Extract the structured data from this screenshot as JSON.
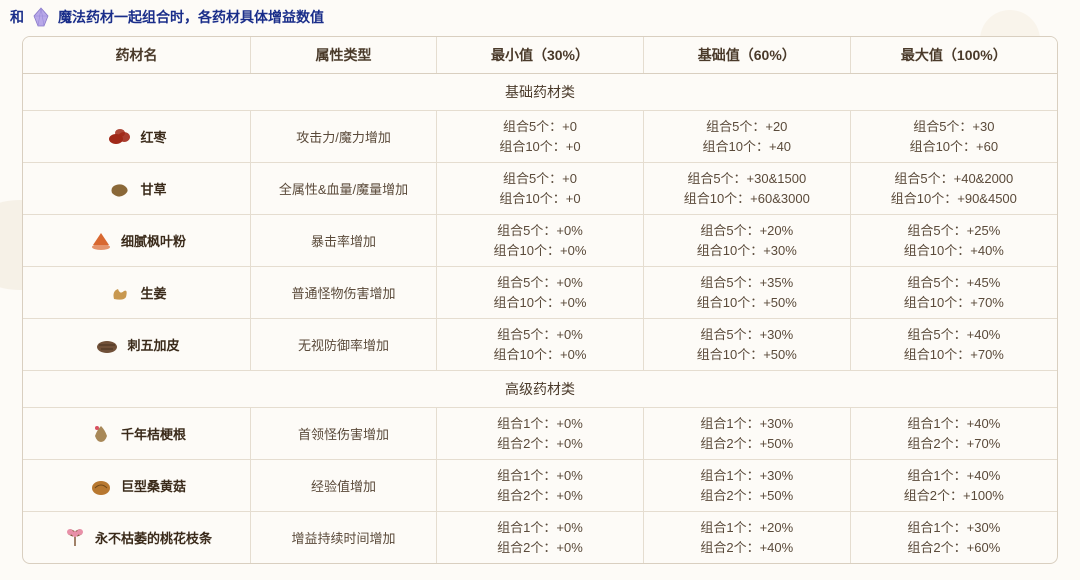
{
  "header": {
    "prefix": "和",
    "title": "魔法药材一起组合时，各药材具体增益数值"
  },
  "columns": [
    "药材名",
    "属性类型",
    "最小值（30%）",
    "基础值（60%）",
    "最大值（100%）"
  ],
  "section1": {
    "title": "基础药材类"
  },
  "section2": {
    "title": "高级药材类"
  },
  "rows1": [
    {
      "name": "红枣",
      "iconColor": "#a02818",
      "attr": "攻击力/魔力增加",
      "minA": "组合5个：+0",
      "minB": "组合10个：+0",
      "baseA": "组合5个：+20",
      "baseB": "组合10个：+40",
      "maxA": "组合5个：+30",
      "maxB": "组合10个：+60"
    },
    {
      "name": "甘草",
      "iconColor": "#8a6838",
      "attr": "全属性&血量/魔量增加",
      "minA": "组合5个：+0",
      "minB": "组合10个：+0",
      "baseA": "组合5个：+30&1500",
      "baseB": "组合10个：+60&3000",
      "maxA": "组合5个：+40&2000",
      "maxB": "组合10个：+90&4500"
    },
    {
      "name": "细腻枫叶粉",
      "iconColor": "#d86830",
      "attr": "暴击率增加",
      "minA": "组合5个：+0%",
      "minB": "组合10个：+0%",
      "baseA": "组合5个：+20%",
      "baseB": "组合10个：+30%",
      "maxA": "组合5个：+25%",
      "maxB": "组合10个：+40%"
    },
    {
      "name": "生姜",
      "iconColor": "#c89850",
      "attr": "普通怪物伤害增加",
      "minA": "组合5个：+0%",
      "minB": "组合10个：+0%",
      "baseA": "组合5个：+35%",
      "baseB": "组合10个：+50%",
      "maxA": "组合5个：+45%",
      "maxB": "组合10个：+70%"
    },
    {
      "name": "刺五加皮",
      "iconColor": "#705038",
      "attr": "无视防御率增加",
      "minA": "组合5个：+0%",
      "minB": "组合10个：+0%",
      "baseA": "组合5个：+30%",
      "baseB": "组合10个：+50%",
      "maxA": "组合5个：+40%",
      "maxB": "组合10个：+70%"
    }
  ],
  "rows2": [
    {
      "name": "千年桔梗根",
      "iconColor": "#a88858",
      "attr": "首领怪伤害增加",
      "minA": "组合1个：+0%",
      "minB": "组合2个：+0%",
      "baseA": "组合1个：+30%",
      "baseB": "组合2个：+50%",
      "maxA": "组合1个：+40%",
      "maxB": "组合2个：+70%"
    },
    {
      "name": "巨型桑黄菇",
      "iconColor": "#b87830",
      "attr": "经验值增加",
      "minA": "组合1个：+0%",
      "minB": "组合2个：+0%",
      "baseA": "组合1个：+30%",
      "baseB": "组合2个：+50%",
      "maxA": "组合1个：+40%",
      "maxB": "组合2个：+100%"
    },
    {
      "name": "永不枯萎的桃花枝条",
      "iconColor": "#e890a8",
      "attr": "增益持续时间增加",
      "minA": "组合1个：+0%",
      "minB": "组合2个：+0%",
      "baseA": "组合1个：+20%",
      "baseB": "组合2个：+40%",
      "maxA": "组合1个：+30%",
      "maxB": "组合2个：+60%"
    }
  ]
}
